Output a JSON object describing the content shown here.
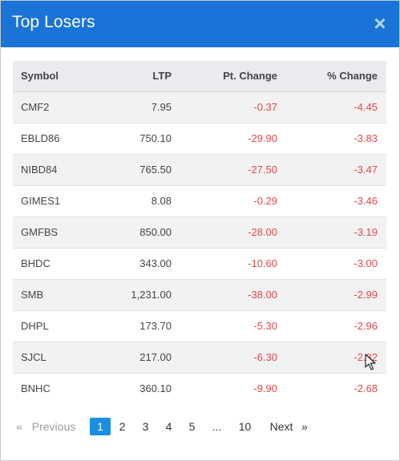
{
  "modal": {
    "title": "Top Losers",
    "close_glyph": "×"
  },
  "table": {
    "headers": {
      "symbol": "Symbol",
      "ltp": "LTP",
      "pt_change": "Pt. Change",
      "pct_change": "% Change"
    },
    "rows": [
      {
        "symbol": "CMF2",
        "ltp": "7.95",
        "pt_change": "-0.37",
        "pct_change": "-4.45"
      },
      {
        "symbol": "EBLD86",
        "ltp": "750.10",
        "pt_change": "-29.90",
        "pct_change": "-3.83"
      },
      {
        "symbol": "NIBD84",
        "ltp": "765.50",
        "pt_change": "-27.50",
        "pct_change": "-3.47"
      },
      {
        "symbol": "GIMES1",
        "ltp": "8.08",
        "pt_change": "-0.29",
        "pct_change": "-3.46"
      },
      {
        "symbol": "GMFBS",
        "ltp": "850.00",
        "pt_change": "-28.00",
        "pct_change": "-3.19"
      },
      {
        "symbol": "BHDC",
        "ltp": "343.00",
        "pt_change": "-10.60",
        "pct_change": "-3.00"
      },
      {
        "symbol": "SMB",
        "ltp": "1,231.00",
        "pt_change": "-38.00",
        "pct_change": "-2.99"
      },
      {
        "symbol": "DHPL",
        "ltp": "173.70",
        "pt_change": "-5.30",
        "pct_change": "-2.96"
      },
      {
        "symbol": "SJCL",
        "ltp": "217.00",
        "pt_change": "-6.30",
        "pct_change": "-2.82"
      },
      {
        "symbol": "BNHC",
        "ltp": "360.10",
        "pt_change": "-9.90",
        "pct_change": "-2.68"
      }
    ]
  },
  "pagination": {
    "prev_arrow": "«",
    "prev_label": "Previous",
    "pages": [
      "1",
      "2",
      "3",
      "4",
      "5"
    ],
    "ellipsis": "...",
    "last_page": "10",
    "next_label": "Next",
    "next_arrow": "»",
    "current_page": "1"
  },
  "colors": {
    "header_bg": "#1a73d6",
    "negative": "#e0474c",
    "active_page": "#1a8fe0"
  },
  "icons": {
    "close": "close-icon",
    "cursor": "mouse-pointer-icon"
  }
}
